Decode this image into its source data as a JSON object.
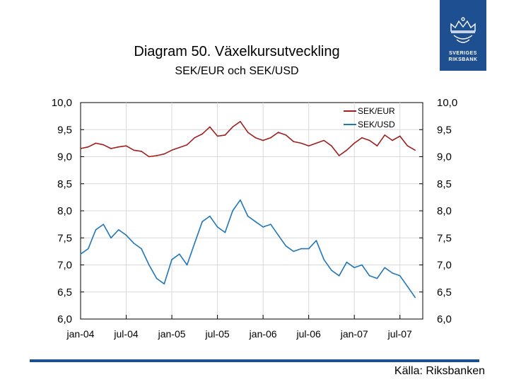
{
  "title": "Diagram 50. Växelkursutveckling",
  "subtitle": "SEK/EUR och SEK/USD",
  "source": "Källa: Riksbanken",
  "logo": {
    "line1": "SVERIGES",
    "line2": "RIKSBANK",
    "color": "#1d4f91"
  },
  "chart_data": {
    "type": "line",
    "title": "Diagram 50. Växelkursutveckling",
    "subtitle": "SEK/EUR och SEK/USD",
    "xlabel": "",
    "ylabel": "",
    "ylim": [
      6.0,
      10.0
    ],
    "y_ticks": [
      "6,0",
      "6,5",
      "7,0",
      "7,5",
      "8,0",
      "8,5",
      "9,0",
      "9,5",
      "10,0"
    ],
    "x_ticks": [
      "jan-04",
      "jul-04",
      "jan-05",
      "jul-05",
      "jan-06",
      "jul-06",
      "jan-07",
      "jul-07"
    ],
    "x_range_months": [
      0,
      45
    ],
    "legend": "top-right",
    "series": [
      {
        "name": "SEK/EUR",
        "color": "#a01e1e",
        "x": [
          0,
          1,
          2,
          3,
          4,
          5,
          6,
          7,
          8,
          9,
          10,
          11,
          12,
          13,
          14,
          15,
          16,
          17,
          18,
          19,
          20,
          21,
          22,
          23,
          24,
          25,
          26,
          27,
          28,
          29,
          30,
          31,
          32,
          33,
          34,
          35,
          36,
          37,
          38,
          39,
          40,
          41,
          42,
          43,
          44
        ],
        "values": [
          9.15,
          9.18,
          9.25,
          9.22,
          9.15,
          9.18,
          9.2,
          9.12,
          9.1,
          9.0,
          9.02,
          9.05,
          9.12,
          9.17,
          9.22,
          9.35,
          9.42,
          9.55,
          9.38,
          9.4,
          9.55,
          9.65,
          9.45,
          9.35,
          9.3,
          9.35,
          9.45,
          9.4,
          9.28,
          9.25,
          9.2,
          9.25,
          9.3,
          9.2,
          9.02,
          9.12,
          9.25,
          9.35,
          9.3,
          9.2,
          9.4,
          9.3,
          9.38,
          9.2,
          9.12
        ]
      },
      {
        "name": "SEK/USD",
        "color": "#1f76b9",
        "x": [
          0,
          1,
          2,
          3,
          4,
          5,
          6,
          7,
          8,
          9,
          10,
          11,
          12,
          13,
          14,
          15,
          16,
          17,
          18,
          19,
          20,
          21,
          22,
          23,
          24,
          25,
          26,
          27,
          28,
          29,
          30,
          31,
          32,
          33,
          34,
          35,
          36,
          37,
          38,
          39,
          40,
          41,
          42,
          43,
          44
        ],
        "values": [
          7.2,
          7.3,
          7.65,
          7.75,
          7.5,
          7.65,
          7.55,
          7.4,
          7.3,
          7.0,
          6.75,
          6.65,
          7.1,
          7.2,
          7.0,
          7.4,
          7.8,
          7.9,
          7.7,
          7.6,
          8.0,
          8.2,
          7.9,
          7.8,
          7.7,
          7.75,
          7.55,
          7.35,
          7.25,
          7.3,
          7.3,
          7.45,
          7.1,
          6.9,
          6.8,
          7.05,
          6.95,
          7.0,
          6.8,
          6.75,
          6.95,
          6.85,
          6.8,
          6.6,
          6.4
        ]
      }
    ]
  }
}
